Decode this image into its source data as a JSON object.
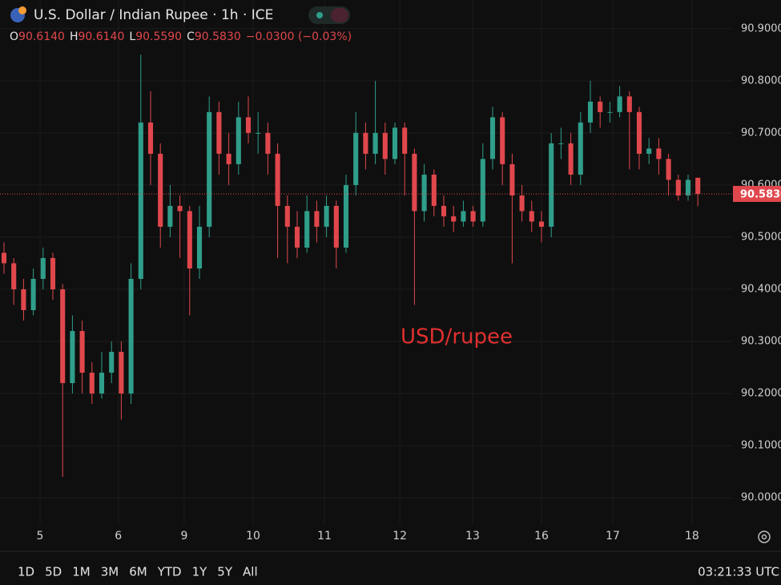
{
  "chart_data": {
    "type": "candlestick",
    "title": "U.S. Dollar / Indian Rupee · 1h · ICE",
    "ohlc_header": [
      {
        "label": "O",
        "value": "90.6140"
      },
      {
        "label": "H",
        "value": "90.6140"
      },
      {
        "label": "L",
        "value": "90.5590"
      },
      {
        "label": "C",
        "value": "90.5830"
      }
    ],
    "change": "−0.0300 (−0.03%)",
    "annotation": "USD/rupee",
    "up_color": "#2f9e8a",
    "down_color": "#e0474c",
    "open": [
      90.47,
      90.45,
      90.4,
      90.36,
      90.42,
      90.46,
      90.4,
      90.22,
      90.32,
      90.24,
      90.2,
      90.24,
      90.28,
      90.2,
      90.42,
      90.72,
      90.66,
      90.52,
      90.56,
      90.55,
      90.44,
      90.52,
      90.74,
      90.66,
      90.64,
      90.73,
      90.7,
      90.7,
      90.66,
      90.56,
      90.52,
      90.48,
      90.55,
      90.52,
      90.56,
      90.48,
      90.6,
      90.7,
      90.66,
      90.7,
      90.65,
      90.71,
      90.66,
      90.55,
      90.62,
      90.56,
      90.54,
      90.53,
      90.55,
      90.53,
      90.65,
      90.73,
      90.64,
      90.58,
      90.55,
      90.53,
      90.52,
      90.68,
      90.68,
      90.62,
      90.72,
      90.76,
      90.74,
      90.74,
      90.77,
      90.74,
      90.66,
      90.67,
      90.65,
      90.61,
      90.58,
      90.614
    ],
    "high": [
      90.49,
      90.46,
      90.42,
      90.44,
      90.48,
      90.47,
      90.41,
      90.35,
      90.34,
      90.26,
      90.28,
      90.3,
      90.3,
      90.45,
      90.85,
      90.78,
      90.68,
      90.6,
      90.58,
      90.56,
      90.56,
      90.77,
      90.76,
      90.7,
      90.76,
      90.77,
      90.74,
      90.72,
      90.68,
      90.58,
      90.55,
      90.58,
      90.57,
      90.58,
      90.57,
      90.62,
      90.74,
      90.72,
      90.8,
      90.72,
      90.72,
      90.72,
      90.67,
      90.64,
      90.63,
      90.58,
      90.56,
      90.57,
      90.56,
      90.68,
      90.75,
      90.74,
      90.66,
      90.6,
      90.57,
      90.55,
      90.7,
      90.71,
      90.7,
      90.74,
      90.8,
      90.77,
      90.76,
      90.79,
      90.78,
      90.75,
      90.69,
      90.69,
      90.66,
      90.62,
      90.62,
      90.614
    ],
    "low": [
      90.43,
      90.37,
      90.34,
      90.35,
      90.4,
      90.38,
      90.04,
      90.2,
      90.2,
      90.18,
      90.19,
      90.22,
      90.15,
      90.18,
      90.4,
      90.6,
      90.48,
      90.5,
      90.46,
      90.35,
      90.42,
      90.5,
      90.62,
      90.6,
      90.62,
      90.68,
      90.66,
      90.62,
      90.46,
      90.45,
      90.46,
      90.47,
      90.49,
      90.5,
      90.44,
      90.47,
      90.58,
      90.63,
      90.64,
      90.62,
      90.64,
      90.58,
      90.37,
      90.53,
      90.54,
      90.52,
      90.51,
      90.52,
      90.52,
      90.52,
      90.63,
      90.6,
      90.45,
      90.53,
      90.51,
      90.49,
      90.5,
      90.65,
      90.6,
      90.6,
      90.7,
      90.71,
      90.72,
      90.73,
      90.63,
      90.63,
      90.64,
      90.62,
      90.58,
      90.57,
      90.57,
      90.559
    ],
    "close": [
      90.45,
      90.4,
      90.36,
      90.42,
      90.46,
      90.4,
      90.22,
      90.32,
      90.24,
      90.2,
      90.24,
      90.28,
      90.2,
      90.42,
      90.72,
      90.66,
      90.52,
      90.56,
      90.55,
      90.44,
      90.52,
      90.74,
      90.66,
      90.64,
      90.73,
      90.7,
      90.7,
      90.66,
      90.56,
      90.52,
      90.48,
      90.55,
      90.52,
      90.56,
      90.48,
      90.6,
      90.7,
      90.66,
      90.7,
      90.65,
      90.71,
      90.66,
      90.55,
      90.62,
      90.56,
      90.54,
      90.53,
      90.55,
      90.53,
      90.65,
      90.73,
      90.64,
      90.58,
      90.55,
      90.53,
      90.52,
      90.68,
      90.68,
      90.62,
      90.72,
      90.76,
      90.74,
      90.74,
      90.77,
      90.74,
      90.66,
      90.67,
      90.65,
      90.61,
      90.58,
      90.61,
      90.583
    ],
    "last_price": {
      "value": 90.583,
      "label": "90.5830"
    },
    "xlim": [
      -0.41,
      74.59
    ],
    "xticks": [
      {
        "value": 3.69,
        "label": "5"
      },
      {
        "value": 11.7,
        "label": "6"
      },
      {
        "value": 18.44,
        "label": "9"
      },
      {
        "value": 25.49,
        "label": "10"
      },
      {
        "value": 32.79,
        "label": "11"
      },
      {
        "value": 40.5,
        "label": "12"
      },
      {
        "value": 47.95,
        "label": "13"
      },
      {
        "value": 55.0,
        "label": "16"
      },
      {
        "value": 62.3,
        "label": "17"
      },
      {
        "value": 70.4,
        "label": "18"
      }
    ],
    "ylim": [
      89.948,
      90.955
    ],
    "yticks": [
      {
        "value": 90.0,
        "label": "90.0000"
      },
      {
        "value": 90.1,
        "label": "90.1000"
      },
      {
        "value": 90.2,
        "label": "90.2000"
      },
      {
        "value": 90.3,
        "label": "90.3000"
      },
      {
        "value": 90.4,
        "label": "90.4000"
      },
      {
        "value": 90.5,
        "label": "90.5000"
      },
      {
        "value": 90.6,
        "label": "90.6000"
      },
      {
        "value": 90.7,
        "label": "90.7000"
      },
      {
        "value": 90.8,
        "label": "90.8000"
      },
      {
        "value": 90.9,
        "label": "90.9000"
      }
    ],
    "grid": true,
    "ranges": [
      "1D",
      "5D",
      "1M",
      "3M",
      "6M",
      "YTD",
      "1Y",
      "5Y",
      "All"
    ],
    "clock": "03:21:33 UTC"
  }
}
